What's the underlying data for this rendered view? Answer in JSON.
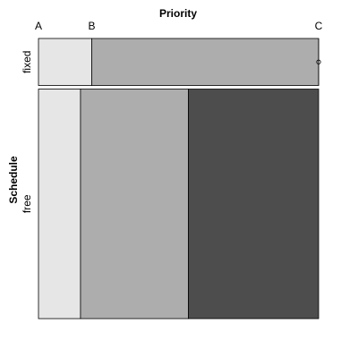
{
  "chart_data": {
    "type": "mosaic",
    "title": "Priority",
    "xlabel": "Priority",
    "ylabel": "Schedule",
    "x_categories": [
      "A",
      "B",
      "C"
    ],
    "y_categories": [
      "fixed",
      "free"
    ],
    "row_proportions": [
      0.17,
      0.83
    ],
    "cells": [
      {
        "row": "fixed",
        "proportions": [
          0.19,
          0.81,
          0.0
        ]
      },
      {
        "row": "free",
        "proportions": [
          0.15,
          0.385,
          0.465
        ]
      }
    ],
    "colors": {
      "A": "#e6e6e6",
      "B": "#adadad",
      "C": "#4d4d4d"
    },
    "empty_cell_marker": "o"
  }
}
